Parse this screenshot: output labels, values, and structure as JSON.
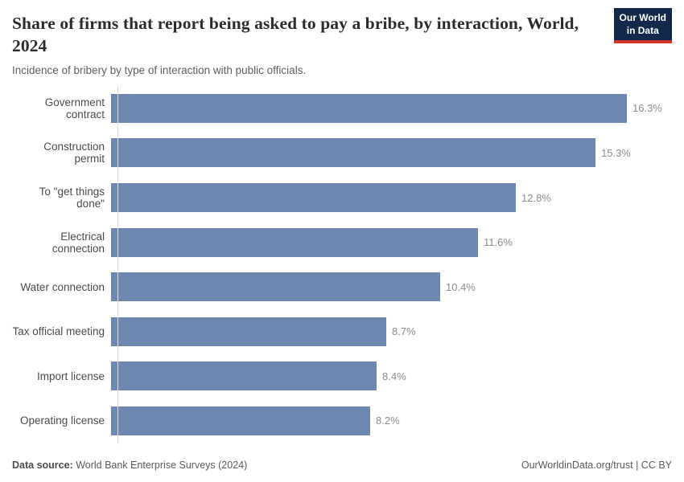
{
  "header": {
    "title": "Share of firms that report being asked to pay a bribe, by interaction, World, 2024",
    "subtitle": "Incidence of bribery by type of interaction with public officials.",
    "logo": {
      "line1": "Our World",
      "line2": "in Data"
    }
  },
  "chart_data": {
    "type": "bar",
    "orientation": "horizontal",
    "title": "Share of firms that report being asked to pay a bribe, by interaction, World, 2024",
    "subtitle": "Incidence of bribery by type of interaction with public officials.",
    "categories": [
      "Government contract",
      "Construction permit",
      "To \"get things done\"",
      "Electrical connection",
      "Water connection",
      "Tax official meeting",
      "Import license",
      "Operating license"
    ],
    "values": [
      16.3,
      15.3,
      12.8,
      11.6,
      10.4,
      8.7,
      8.4,
      8.2
    ],
    "value_labels": [
      "16.3%",
      "15.3%",
      "12.8%",
      "11.6%",
      "10.4%",
      "8.7%",
      "8.4%",
      "8.2%"
    ],
    "unit": "%",
    "xlim": [
      0,
      16.3
    ],
    "grid": false,
    "legend": "none",
    "bar_color": "#6e87b0"
  },
  "footer": {
    "source_label": "Data source:",
    "source_value": " World Bank Enterprise Surveys (2024)",
    "url": "OurWorldinData.org/trust",
    "separator": " | ",
    "license": "CC BY"
  },
  "colors": {
    "bar": "#6e87b0",
    "logo_background": "#12294b",
    "logo_accent": "#d1342b",
    "title_text": "#2c2c2c",
    "value_text": "#8c8c8c"
  }
}
